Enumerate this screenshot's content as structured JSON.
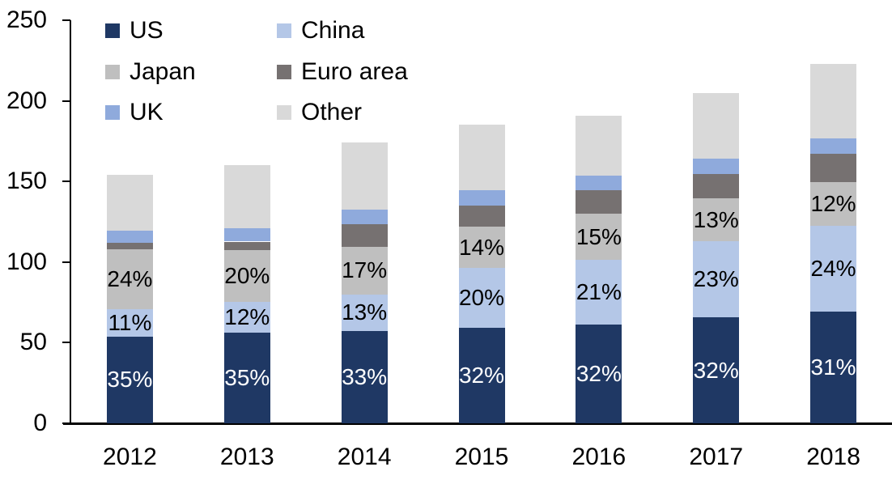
{
  "chart_data": {
    "type": "bar",
    "stacked": true,
    "title": "",
    "xlabel": "",
    "ylabel": "",
    "categories": [
      "2012",
      "2013",
      "2014",
      "2015",
      "2016",
      "2017",
      "2018"
    ],
    "series": [
      {
        "name": "US",
        "color": "#1F3864",
        "values": [
          53.9,
          56.0,
          57.4,
          59.2,
          61.1,
          65.6,
          69.1
        ],
        "labels": [
          "35%",
          "35%",
          "33%",
          "32%",
          "32%",
          "32%",
          "31%"
        ],
        "label_color": "#FFFFFF"
      },
      {
        "name": "China",
        "color": "#B4C7E7",
        "values": [
          16.9,
          19.2,
          22.6,
          37.0,
          40.1,
          47.2,
          53.5
        ],
        "labels": [
          "11%",
          "12%",
          "13%",
          "20%",
          "21%",
          "23%",
          "24%"
        ],
        "label_color": "#000000"
      },
      {
        "name": "Japan",
        "color": "#BFBFBF",
        "values": [
          37.0,
          32.0,
          29.6,
          25.9,
          28.7,
          26.7,
          26.8
        ],
        "labels": [
          "24%",
          "20%",
          "17%",
          "14%",
          "15%",
          "13%",
          "12%"
        ],
        "label_color": "#000000"
      },
      {
        "name": "Euro area",
        "color": "#767171",
        "values": [
          4.0,
          5.5,
          14.1,
          13.1,
          14.6,
          15.1,
          17.6
        ],
        "labels": null,
        "label_color": null
      },
      {
        "name": "UK",
        "color": "#8FAADC",
        "values": [
          7.5,
          8.5,
          9.0,
          9.5,
          9.0,
          9.5,
          9.5
        ],
        "labels": null,
        "label_color": null
      },
      {
        "name": "Other",
        "color": "#D9D9D9",
        "values": [
          34.7,
          38.8,
          41.3,
          40.3,
          37.5,
          40.9,
          46.5
        ],
        "labels": null,
        "label_color": null
      }
    ],
    "totals_approx": [
      154,
      160,
      174,
      185,
      191,
      205,
      223
    ],
    "ylim": [
      0,
      250
    ],
    "ytick_step": 50,
    "ytick_labels": [
      "0",
      "50",
      "100",
      "150",
      "200",
      "250"
    ],
    "grid": false,
    "legend_position": "top-left",
    "legend_order": [
      "US",
      "China",
      "Japan",
      "Euro area",
      "UK",
      "Other"
    ],
    "axis_color": "#000000",
    "background_color": "#FFFFFF"
  }
}
